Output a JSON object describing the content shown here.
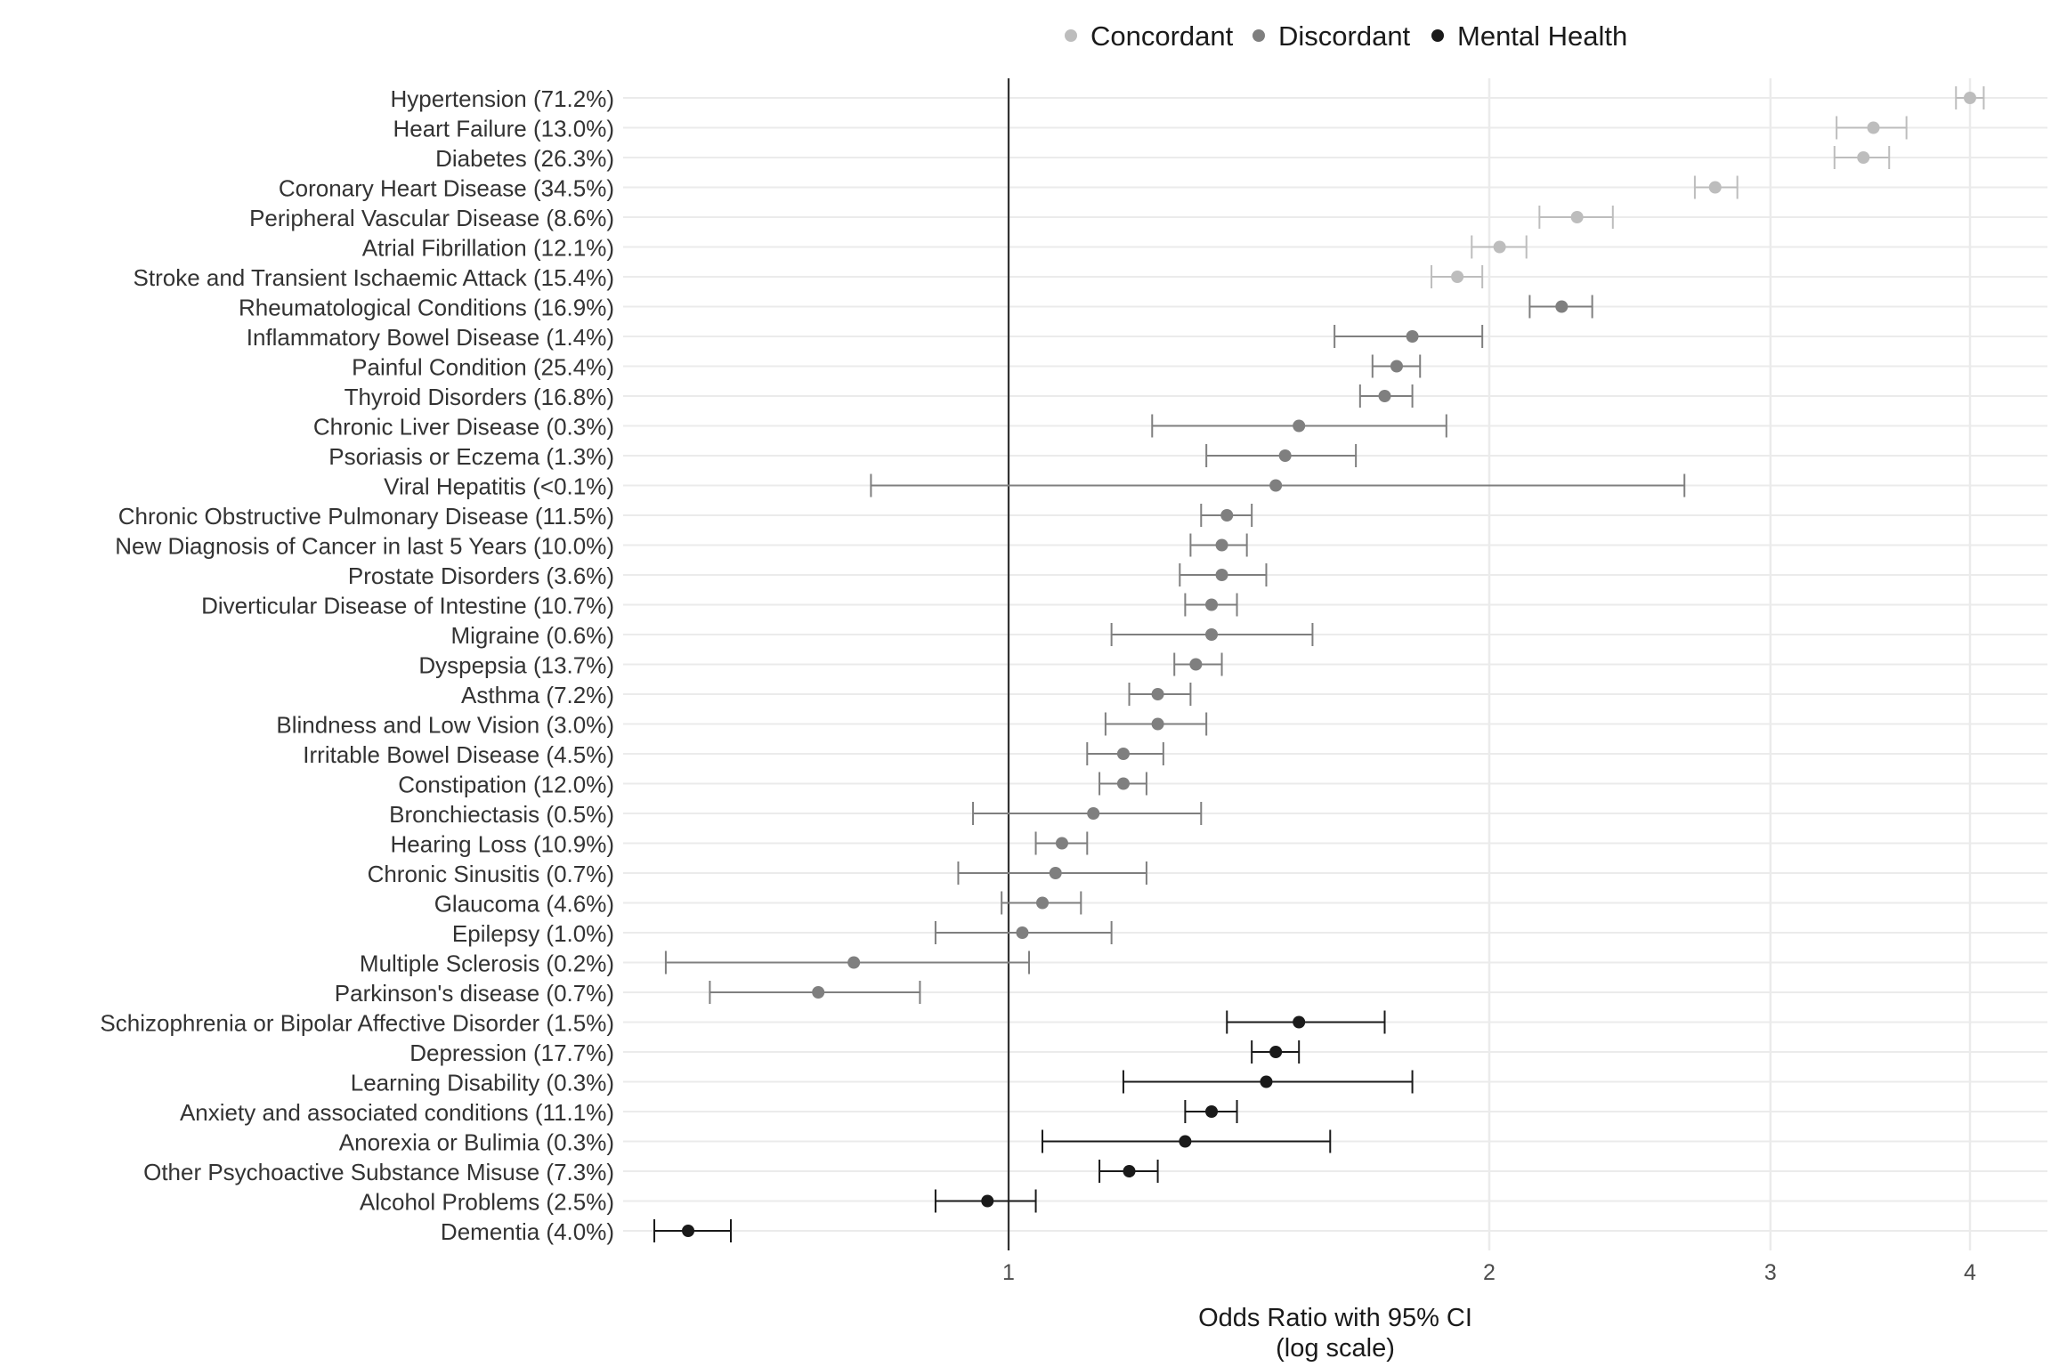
{
  "chart_data": {
    "type": "scatter",
    "subtype": "forest-plot",
    "xscale": "log",
    "xlabel": [
      "Odds Ratio with 95% CI",
      "(log scale)"
    ],
    "xticks": [
      1,
      2,
      3,
      4
    ],
    "xlim": [
      0.49,
      4.25
    ],
    "reference_line": 1,
    "grid": "on",
    "legend_position": "top",
    "legend": [
      {
        "name": "Concordant",
        "color": "#bdbdbd"
      },
      {
        "name": "Discordant",
        "color": "#7f7f7f"
      },
      {
        "name": "Mental Health",
        "color": "#1a1a1a"
      }
    ],
    "rows": [
      {
        "label": "Hypertension (71.2%)",
        "group": "Concordant",
        "or": 4.0,
        "lo": 3.92,
        "hi": 4.08
      },
      {
        "label": "Heart Failure (13.0%)",
        "group": "Concordant",
        "or": 3.48,
        "lo": 3.3,
        "hi": 3.65
      },
      {
        "label": "Diabetes (26.3%)",
        "group": "Concordant",
        "or": 3.43,
        "lo": 3.29,
        "hi": 3.56
      },
      {
        "label": "Coronary Heart Disease (34.5%)",
        "group": "Concordant",
        "or": 2.77,
        "lo": 2.69,
        "hi": 2.86
      },
      {
        "label": "Peripheral Vascular Disease (8.6%)",
        "group": "Concordant",
        "or": 2.27,
        "lo": 2.15,
        "hi": 2.39
      },
      {
        "label": "Atrial Fibrillation (12.1%)",
        "group": "Concordant",
        "or": 2.03,
        "lo": 1.95,
        "hi": 2.11
      },
      {
        "label": "Stroke and Transient Ischaemic Attack (15.4%)",
        "group": "Concordant",
        "or": 1.91,
        "lo": 1.84,
        "hi": 1.98
      },
      {
        "label": "Rheumatological Conditions (16.9%)",
        "group": "Discordant",
        "or": 2.22,
        "lo": 2.12,
        "hi": 2.32
      },
      {
        "label": "Inflammatory Bowel Disease (1.4%)",
        "group": "Discordant",
        "or": 1.79,
        "lo": 1.6,
        "hi": 1.98
      },
      {
        "label": "Painful Condition (25.4%)",
        "group": "Discordant",
        "or": 1.75,
        "lo": 1.69,
        "hi": 1.81
      },
      {
        "label": "Thyroid Disorders (16.8%)",
        "group": "Discordant",
        "or": 1.72,
        "lo": 1.66,
        "hi": 1.79
      },
      {
        "label": "Chronic Liver Disease (0.3%)",
        "group": "Discordant",
        "or": 1.52,
        "lo": 1.23,
        "hi": 1.88
      },
      {
        "label": "Psoriasis or Eczema (1.3%)",
        "group": "Discordant",
        "or": 1.49,
        "lo": 1.33,
        "hi": 1.65
      },
      {
        "label": "Viral Hepatitis (<0.1%)",
        "group": "Discordant",
        "or": 1.47,
        "lo": 0.82,
        "hi": 2.65
      },
      {
        "label": "Chronic Obstructive Pulmonary Disease (11.5%)",
        "group": "Discordant",
        "or": 1.37,
        "lo": 1.32,
        "hi": 1.42
      },
      {
        "label": "New Diagnosis of Cancer in last 5 Years (10.0%)",
        "group": "Discordant",
        "or": 1.36,
        "lo": 1.3,
        "hi": 1.41
      },
      {
        "label": "Prostate Disorders (3.6%)",
        "group": "Discordant",
        "or": 1.36,
        "lo": 1.28,
        "hi": 1.45
      },
      {
        "label": "Diverticular Disease of Intestine (10.7%)",
        "group": "Discordant",
        "or": 1.34,
        "lo": 1.29,
        "hi": 1.39
      },
      {
        "label": "Migraine (0.6%)",
        "group": "Discordant",
        "or": 1.34,
        "lo": 1.16,
        "hi": 1.55
      },
      {
        "label": "Dyspepsia (13.7%)",
        "group": "Discordant",
        "or": 1.31,
        "lo": 1.27,
        "hi": 1.36
      },
      {
        "label": "Asthma (7.2%)",
        "group": "Discordant",
        "or": 1.24,
        "lo": 1.19,
        "hi": 1.3
      },
      {
        "label": "Blindness and Low Vision (3.0%)",
        "group": "Discordant",
        "or": 1.24,
        "lo": 1.15,
        "hi": 1.33
      },
      {
        "label": "Irritable Bowel Disease (4.5%)",
        "group": "Discordant",
        "or": 1.18,
        "lo": 1.12,
        "hi": 1.25
      },
      {
        "label": "Constipation (12.0%)",
        "group": "Discordant",
        "or": 1.18,
        "lo": 1.14,
        "hi": 1.22
      },
      {
        "label": "Bronchiectasis (0.5%)",
        "group": "Discordant",
        "or": 1.13,
        "lo": 0.95,
        "hi": 1.32
      },
      {
        "label": "Hearing Loss (10.9%)",
        "group": "Discordant",
        "or": 1.08,
        "lo": 1.04,
        "hi": 1.12
      },
      {
        "label": "Chronic Sinusitis (0.7%)",
        "group": "Discordant",
        "or": 1.07,
        "lo": 0.93,
        "hi": 1.22
      },
      {
        "label": "Glaucoma (4.6%)",
        "group": "Discordant",
        "or": 1.05,
        "lo": 0.99,
        "hi": 1.11
      },
      {
        "label": "Epilepsy (1.0%)",
        "group": "Discordant",
        "or": 1.02,
        "lo": 0.9,
        "hi": 1.16
      },
      {
        "label": "Multiple Sclerosis (0.2%)",
        "group": "Discordant",
        "or": 0.8,
        "lo": 0.61,
        "hi": 1.03
      },
      {
        "label": "Parkinson's disease (0.7%)",
        "group": "Discordant",
        "or": 0.76,
        "lo": 0.65,
        "hi": 0.88
      },
      {
        "label": "Schizophrenia or Bipolar Affective Disorder (1.5%)",
        "group": "Mental Health",
        "or": 1.52,
        "lo": 1.37,
        "hi": 1.72
      },
      {
        "label": "Depression (17.7%)",
        "group": "Mental Health",
        "or": 1.47,
        "lo": 1.42,
        "hi": 1.52
      },
      {
        "label": "Learning Disability (0.3%)",
        "group": "Mental Health",
        "or": 1.45,
        "lo": 1.18,
        "hi": 1.79
      },
      {
        "label": "Anxiety and associated conditions (11.1%)",
        "group": "Mental Health",
        "or": 1.34,
        "lo": 1.29,
        "hi": 1.39
      },
      {
        "label": "Anorexia or Bulimia (0.3%)",
        "group": "Mental Health",
        "or": 1.29,
        "lo": 1.05,
        "hi": 1.59
      },
      {
        "label": "Other Psychoactive Substance Misuse (7.3%)",
        "group": "Mental Health",
        "or": 1.19,
        "lo": 1.14,
        "hi": 1.24
      },
      {
        "label": "Alcohol Problems (2.5%)",
        "group": "Mental Health",
        "or": 0.97,
        "lo": 0.9,
        "hi": 1.04
      },
      {
        "label": "Dementia (4.0%)",
        "group": "Mental Health",
        "or": 0.63,
        "lo": 0.6,
        "hi": 0.67
      }
    ]
  }
}
